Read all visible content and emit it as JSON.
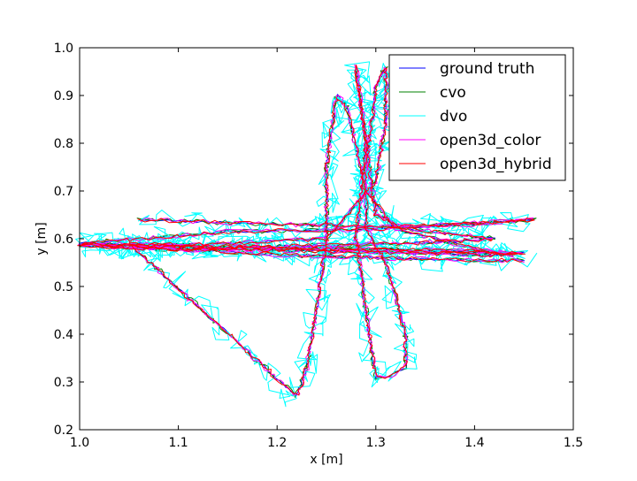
{
  "chart_data": {
    "type": "line",
    "title": "",
    "xlabel": "x [m]",
    "ylabel": "y [m]",
    "xlim": [
      1.0,
      1.5
    ],
    "ylim": [
      0.2,
      1.0
    ],
    "xticks": [
      "1.0",
      "1.1",
      "1.2",
      "1.3",
      "1.4",
      "1.5"
    ],
    "yticks": [
      "0.2",
      "0.3",
      "0.4",
      "0.5",
      "0.6",
      "0.7",
      "0.8",
      "0.9",
      "1.0"
    ],
    "grid": false,
    "legend_position": "top-right",
    "colors": {
      "ground_truth": "#0000ff",
      "cvo": "#008000",
      "dvo": "#00ffff",
      "open3d_color": "#ff00ff",
      "open3d_hybrid": "#ff0000"
    },
    "series": [
      {
        "name": "ground truth",
        "color": "#0000ff",
        "noise": 0.0025,
        "jitter_scale": 1.0
      },
      {
        "name": "cvo",
        "color": "#008000",
        "noise": 0.005,
        "jitter_scale": 1.0
      },
      {
        "name": "dvo",
        "color": "#00ffff",
        "noise": 0.012,
        "jitter_scale": 2.2
      },
      {
        "name": "open3d_color",
        "color": "#ff00ff",
        "noise": 0.005,
        "jitter_scale": 1.0
      },
      {
        "name": "open3d_hybrid",
        "color": "#ff0000",
        "noise": 0.0045,
        "jitter_scale": 1.0
      }
    ],
    "trajectory": {
      "x": [
        1.06,
        1.2,
        1.3,
        1.4,
        1.46,
        1.3,
        1.15,
        1.0,
        1.1,
        1.25,
        1.38,
        1.45,
        1.3,
        1.15,
        1.05,
        1.22,
        1.23,
        1.24,
        1.25,
        1.25,
        1.26,
        1.27,
        1.29,
        1.32,
        1.36,
        1.4,
        1.44,
        1.35,
        1.22,
        1.08,
        1.02,
        1.15,
        1.25,
        1.3,
        1.31,
        1.31,
        1.3,
        1.29,
        1.29,
        1.31,
        1.32,
        1.33,
        1.33,
        1.31,
        1.3,
        1.29,
        1.28,
        1.29,
        1.28,
        1.29,
        1.3,
        1.33,
        1.38,
        1.42,
        1.33,
        1.22,
        1.1,
        1.0,
        1.12,
        1.22,
        1.3,
        1.4,
        1.45
      ],
      "y": [
        0.64,
        0.63,
        0.625,
        0.63,
        0.64,
        0.62,
        0.615,
        0.59,
        0.585,
        0.58,
        0.575,
        0.57,
        0.575,
        0.58,
        0.59,
        0.27,
        0.33,
        0.45,
        0.6,
        0.75,
        0.9,
        0.88,
        0.7,
        0.62,
        0.6,
        0.58,
        0.565,
        0.57,
        0.575,
        0.58,
        0.585,
        0.59,
        0.6,
        0.72,
        0.85,
        0.96,
        0.92,
        0.75,
        0.62,
        0.55,
        0.48,
        0.4,
        0.33,
        0.31,
        0.31,
        0.45,
        0.6,
        0.8,
        0.96,
        0.8,
        0.65,
        0.62,
        0.61,
        0.6,
        0.59,
        0.585,
        0.58,
        0.585,
        0.575,
        0.565,
        0.56,
        0.555,
        0.555
      ]
    }
  },
  "legend": {
    "entries": [
      "ground truth",
      "cvo",
      "dvo",
      "open3d_color",
      "open3d_hybrid"
    ]
  }
}
